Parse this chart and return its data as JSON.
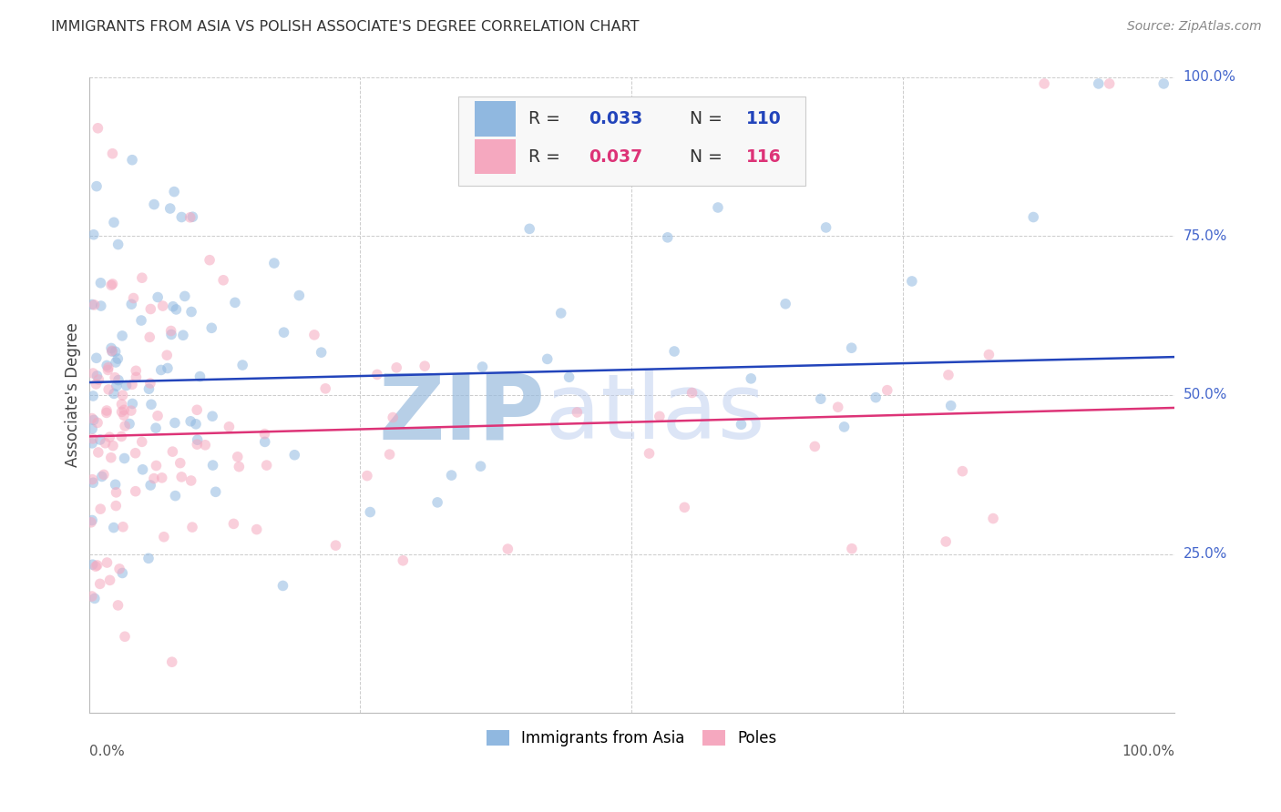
{
  "title": "IMMIGRANTS FROM ASIA VS POLISH ASSOCIATE'S DEGREE CORRELATION CHART",
  "source": "Source: ZipAtlas.com",
  "ylabel": "Associate's Degree",
  "y_ticks_right": [
    "100.0%",
    "75.0%",
    "50.0%",
    "25.0%"
  ],
  "blue_R": 0.033,
  "blue_N": 110,
  "pink_R": 0.037,
  "pink_N": 116,
  "blue_color": "#90b8e0",
  "pink_color": "#f5a8bf",
  "blue_line_color": "#2244bb",
  "pink_line_color": "#dd3377",
  "legend_label_blue": "Immigrants from Asia",
  "legend_label_pink": "Poles",
  "background_color": "#ffffff",
  "grid_color": "#cccccc",
  "title_color": "#333333",
  "blue_trendline": {
    "x_start": 0,
    "x_end": 100,
    "y_start": 52.0,
    "y_end": 56.0
  },
  "pink_trendline": {
    "x_start": 0,
    "x_end": 100,
    "y_start": 43.5,
    "y_end": 48.0
  },
  "xlim": [
    0,
    100
  ],
  "ylim": [
    0,
    100
  ],
  "marker_size": 70,
  "marker_alpha": 0.55,
  "watermark_color": "#ccddf0"
}
